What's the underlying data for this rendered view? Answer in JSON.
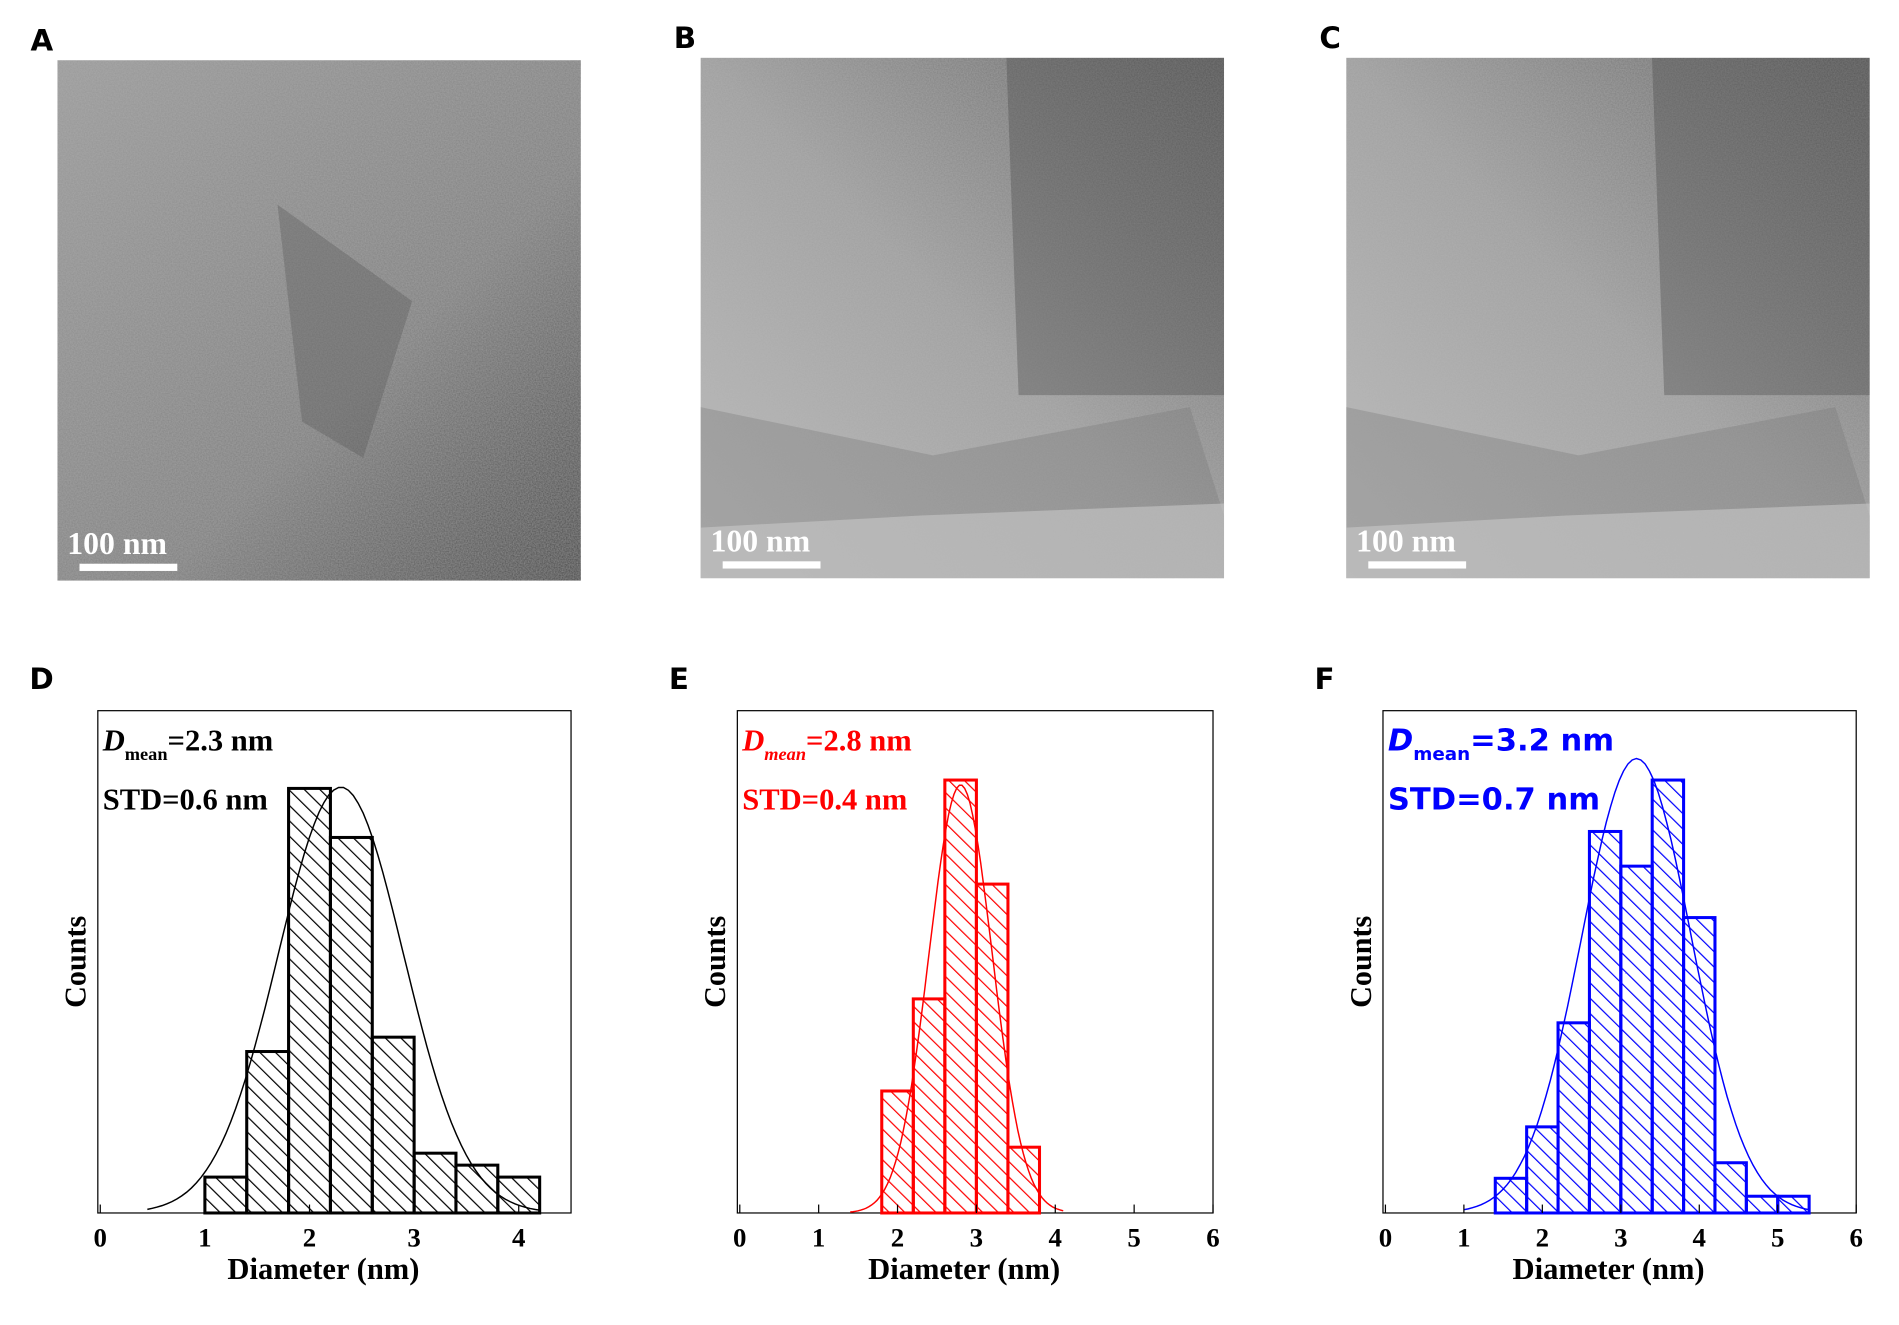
{
  "images": [
    {
      "label": "A",
      "scale_bar": "100 nm"
    },
    {
      "label": "B",
      "scale_bar": "100 nm"
    },
    {
      "label": "C",
      "scale_bar": "100 nm"
    }
  ],
  "chart_data": [
    {
      "type": "histogram",
      "label": "D",
      "color": "#000000",
      "xlabel": "Diameter (nm)",
      "ylabel": "Counts",
      "annotation": {
        "symbol": "D",
        "subscript": "mean",
        "mean_text": "=2.3 nm",
        "std_text": "STD=0.6 nm"
      },
      "bins": [
        1,
        1.4,
        1.8,
        2.2,
        2.6,
        3,
        3.4,
        3.8,
        4.2
      ],
      "counts": [
        3,
        13.5,
        35.5,
        31.4,
        14.7,
        5,
        4,
        3
      ],
      "xlim": [
        0,
        4.5
      ],
      "ylim": [
        0,
        42
      ],
      "xticks": [
        0,
        1,
        2,
        3,
        4
      ],
      "fit": {
        "mean": 2.3,
        "std": 0.6,
        "peak": 35.6,
        "from": 0.45,
        "to": 4.2
      }
    },
    {
      "type": "histogram",
      "label": "E",
      "color": "#ff0000",
      "xlabel": "Diameter (nm)",
      "ylabel": "Counts",
      "annotation": {
        "symbol": "D",
        "subscript": "mean",
        "mean_text": "=2.8 nm",
        "std_text": "STD=0.4 nm"
      },
      "bins": [
        1.8,
        2.2,
        2.6,
        3,
        3.4,
        3.8
      ],
      "counts": [
        10.2,
        17.9,
        36.2,
        27.5,
        5.5
      ],
      "xlim": [
        0,
        6
      ],
      "ylim": [
        0,
        42
      ],
      "xticks": [
        0,
        1,
        2,
        3,
        4,
        5,
        6
      ],
      "fit": {
        "mean": 2.8,
        "std": 0.4,
        "peak": 35.8,
        "from": 1.4,
        "to": 4.1
      }
    },
    {
      "type": "histogram",
      "label": "F",
      "color": "#0000ff",
      "xlabel": "Diameter (nm)",
      "ylabel": "Counts",
      "annotation": {
        "symbol": "D",
        "subscript": "mean",
        "mean_text": "=3.2 nm",
        "std_text": "STD=0.7 nm"
      },
      "bins": [
        1.4,
        1.8,
        2.2,
        2.6,
        3,
        3.4,
        3.8,
        4.2,
        4.6,
        5,
        5.4
      ],
      "counts": [
        2.9,
        7.2,
        15.9,
        31.9,
        29,
        36.2,
        24.7,
        4.2,
        1.4,
        1.4
      ],
      "xlim": [
        0,
        6
      ],
      "ylim": [
        0,
        42
      ],
      "xticks": [
        0,
        1,
        2,
        3,
        4,
        5,
        6
      ],
      "fit": {
        "mean": 3.2,
        "std": 0.7,
        "peak": 38,
        "from": 1,
        "to": 5.4
      }
    }
  ]
}
